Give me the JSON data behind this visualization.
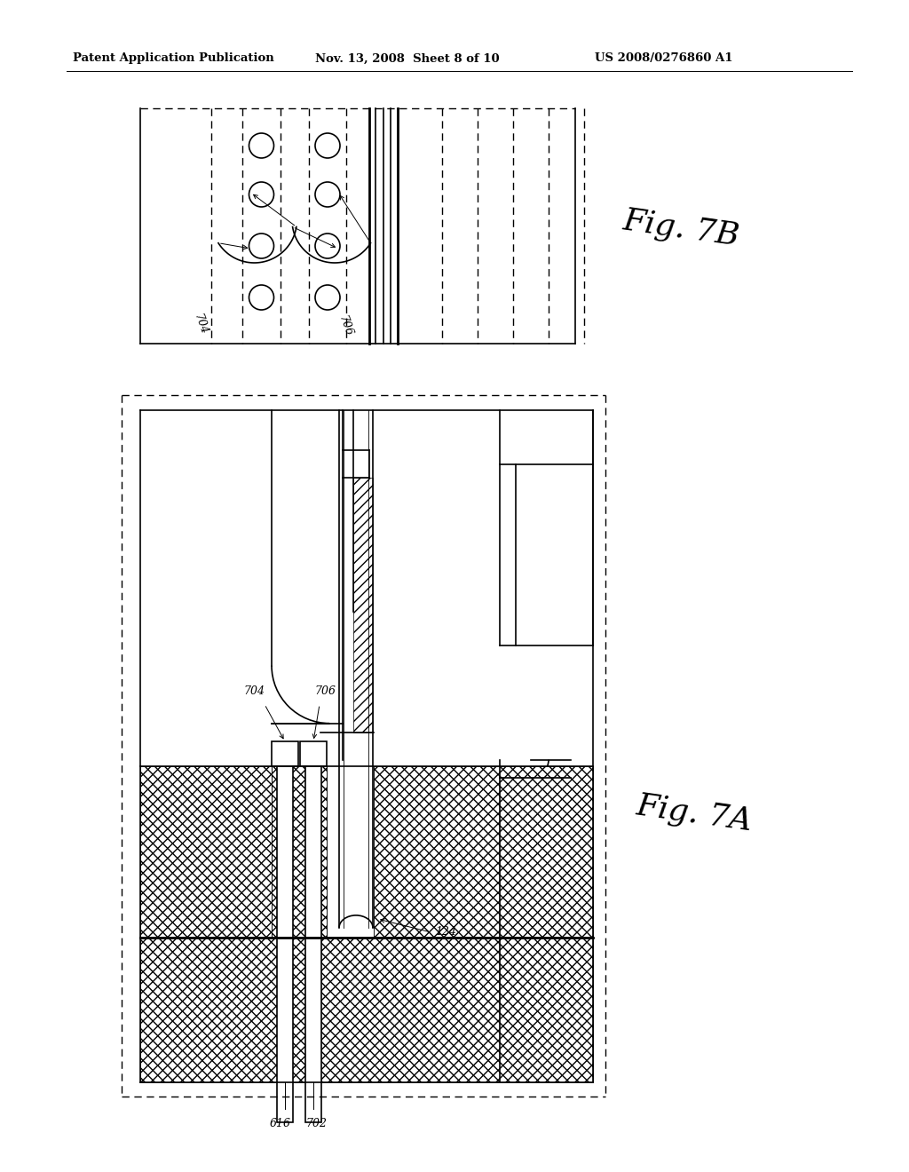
{
  "bg_color": "#ffffff",
  "header_left": "Patent Application Publication",
  "header_mid": "Nov. 13, 2008  Sheet 8 of 10",
  "header_right": "US 2008/0276860 A1",
  "fig7b_label": "Fig. 7B",
  "fig7a_label": "Fig. 7A",
  "label_704": "704",
  "label_706": "706",
  "label_616": "616",
  "label_702": "702",
  "label_124": "124",
  "lw_thin": 0.7,
  "lw_med": 1.2,
  "lw_thick": 2.0
}
